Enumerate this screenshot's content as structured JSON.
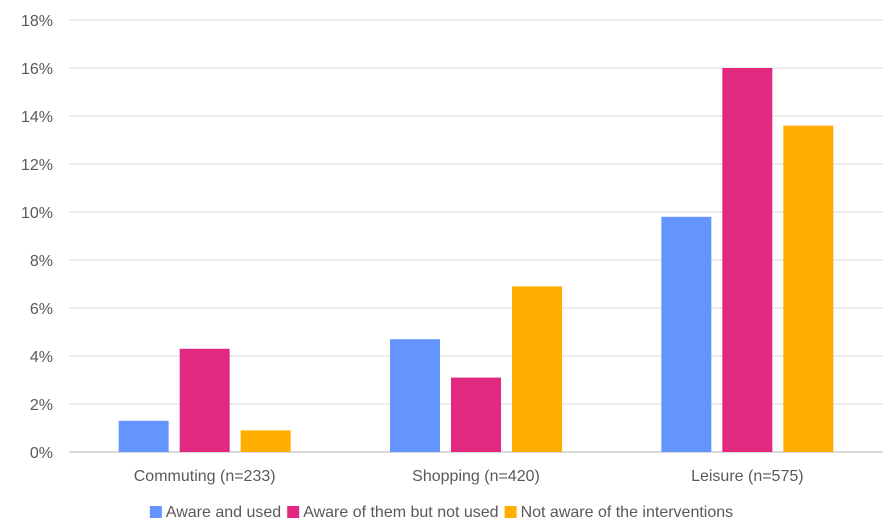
{
  "chart_data": {
    "type": "bar",
    "categories": [
      "Commuting (n=233)",
      "Shopping (n=420)",
      "Leisure (n=575)"
    ],
    "series": [
      {
        "name": "Aware and used",
        "color": "#6495ff",
        "values": [
          1.3,
          4.7,
          9.8
        ]
      },
      {
        "name": "Aware of them but not used",
        "color": "#e0297f",
        "values": [
          4.3,
          3.1,
          16.0
        ]
      },
      {
        "name": "Not aware of the interventions",
        "color": "#ffae00",
        "values": [
          0.9,
          6.9,
          13.6
        ]
      }
    ],
    "ylim": [
      0,
      18
    ],
    "yticks": [
      "0%",
      "2%",
      "4%",
      "6%",
      "8%",
      "10%",
      "12%",
      "14%",
      "16%",
      "18%"
    ],
    "grid": true,
    "legend_position": "bottom"
  }
}
